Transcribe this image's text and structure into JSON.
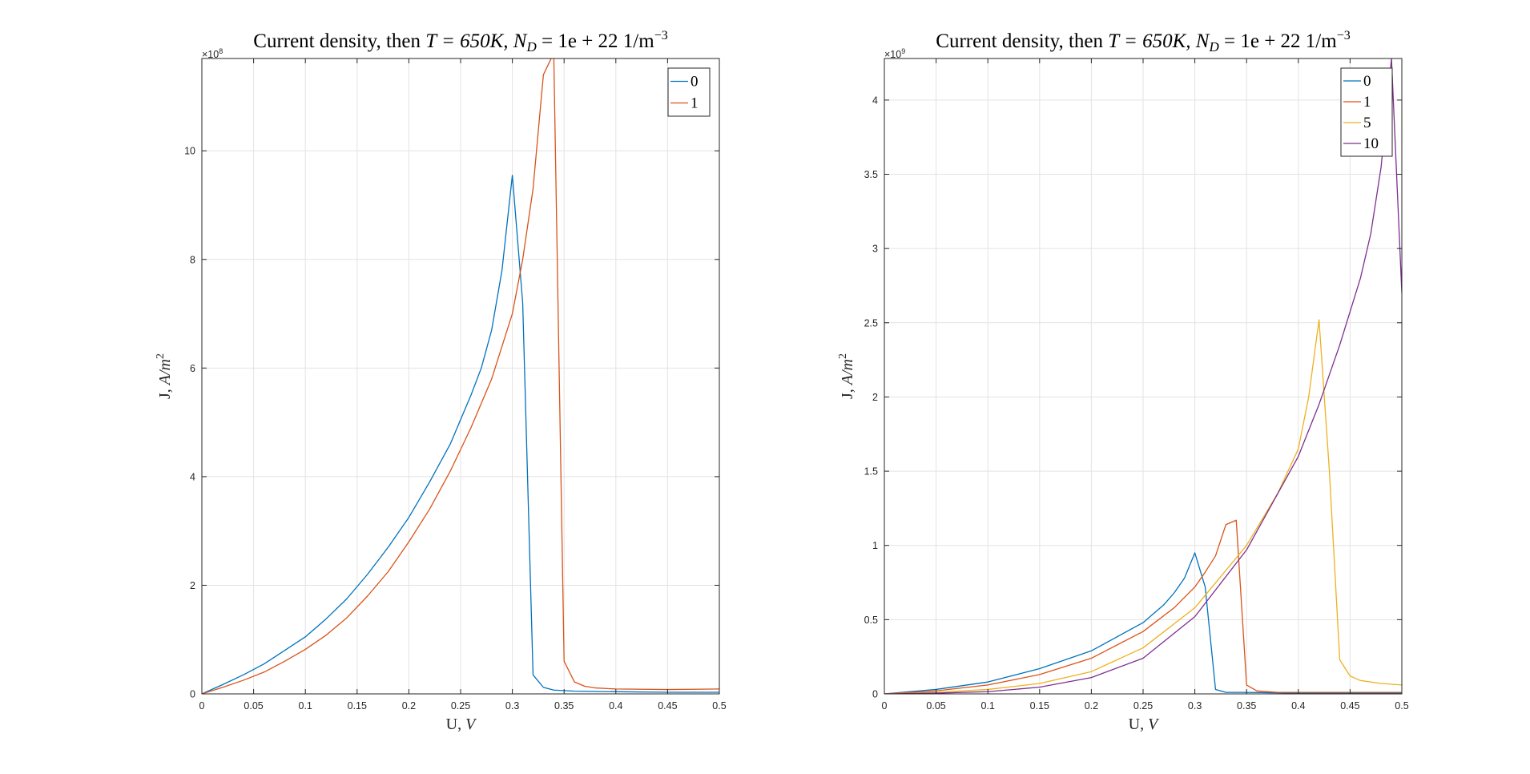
{
  "chart_data": [
    {
      "type": "line",
      "title": "Current density, then T = 650K, N_D = 1e + 22 1/m^-3",
      "title_parts": {
        "prefix": "Current density, then ",
        "t": "T = 650K, ",
        "n": "N",
        "n_sub": "D",
        "n_rest": " = 1e + 22 1/m",
        "n_sup": "−3"
      },
      "xlabel": "U, V",
      "xlabel_parts": {
        "a": "U, ",
        "b": "V"
      },
      "ylabel": "J, A/m^2",
      "ylabel_parts": {
        "a": "J, ",
        "b": "A/m",
        "sup": "2"
      },
      "exponent_label": "×10^8",
      "exponent_parts": {
        "base": "×10",
        "sup": "8"
      },
      "xlim": [
        0,
        0.5
      ],
      "ylim": [
        0,
        11.7
      ],
      "xticks": [
        0,
        0.05,
        0.1,
        0.15,
        0.2,
        0.25,
        0.3,
        0.35,
        0.4,
        0.45,
        0.5
      ],
      "xtick_labels": [
        "0",
        "0.05",
        "0.1",
        "0.15",
        "0.2",
        "0.25",
        "0.3",
        "0.35",
        "0.4",
        "0.45",
        "0.5"
      ],
      "yticks": [
        0,
        2,
        4,
        6,
        8,
        10
      ],
      "ytick_labels": [
        "0",
        "2",
        "4",
        "6",
        "8",
        "10"
      ],
      "grid": true,
      "legend_position": "top-right",
      "series": [
        {
          "name": "0",
          "color": "#0072BD",
          "x": [
            0,
            0.02,
            0.04,
            0.06,
            0.08,
            0.1,
            0.12,
            0.14,
            0.16,
            0.18,
            0.2,
            0.22,
            0.24,
            0.26,
            0.27,
            0.28,
            0.29,
            0.3,
            0.31,
            0.32,
            0.33,
            0.34,
            0.36,
            0.4,
            0.45,
            0.5
          ],
          "y": [
            0,
            0.17,
            0.35,
            0.55,
            0.8,
            1.05,
            1.38,
            1.75,
            2.2,
            2.7,
            3.25,
            3.9,
            4.6,
            5.5,
            6.0,
            6.7,
            7.8,
            9.55,
            7.2,
            0.35,
            0.12,
            0.07,
            0.05,
            0.04,
            0.03,
            0.03
          ]
        },
        {
          "name": "1",
          "color": "#D95319",
          "x": [
            0,
            0.02,
            0.04,
            0.06,
            0.08,
            0.1,
            0.12,
            0.14,
            0.16,
            0.18,
            0.2,
            0.22,
            0.24,
            0.26,
            0.28,
            0.3,
            0.31,
            0.32,
            0.33,
            0.34,
            0.35,
            0.36,
            0.37,
            0.38,
            0.4,
            0.45,
            0.5
          ],
          "y": [
            0,
            0.12,
            0.25,
            0.4,
            0.6,
            0.82,
            1.08,
            1.4,
            1.8,
            2.25,
            2.8,
            3.4,
            4.1,
            4.9,
            5.8,
            7.0,
            8.0,
            9.3,
            11.4,
            11.8,
            0.6,
            0.22,
            0.14,
            0.11,
            0.09,
            0.08,
            0.09
          ]
        }
      ]
    },
    {
      "type": "line",
      "title": "Current density, then T = 650K, N_D = 1e + 22 1/m^-3",
      "title_parts": {
        "prefix": "Current density, then ",
        "t": "T = 650K, ",
        "n": "N",
        "n_sub": "D",
        "n_rest": " = 1e + 22 1/m",
        "n_sup": "−3"
      },
      "xlabel": "U, V",
      "xlabel_parts": {
        "a": "U, ",
        "b": "V"
      },
      "ylabel": "J, A/m^2",
      "ylabel_parts": {
        "a": "J, ",
        "b": "A/m",
        "sup": "2"
      },
      "exponent_label": "×10^9",
      "exponent_parts": {
        "base": "×10",
        "sup": "9"
      },
      "xlim": [
        0,
        0.5
      ],
      "ylim": [
        0,
        4.28
      ],
      "xticks": [
        0,
        0.05,
        0.1,
        0.15,
        0.2,
        0.25,
        0.3,
        0.35,
        0.4,
        0.45,
        0.5
      ],
      "xtick_labels": [
        "0",
        "0.05",
        "0.1",
        "0.15",
        "0.2",
        "0.25",
        "0.3",
        "0.35",
        "0.4",
        "0.45",
        "0.5"
      ],
      "yticks": [
        0,
        0.5,
        1,
        1.5,
        2,
        2.5,
        3,
        3.5,
        4
      ],
      "ytick_labels": [
        "0",
        "0.5",
        "1",
        "1.5",
        "2",
        "2.5",
        "3",
        "3.5",
        "4"
      ],
      "grid": true,
      "legend_position": "top-right",
      "series": [
        {
          "name": "0",
          "color": "#0072BD",
          "x": [
            0,
            0.05,
            0.1,
            0.15,
            0.2,
            0.25,
            0.27,
            0.28,
            0.29,
            0.3,
            0.31,
            0.32,
            0.33,
            0.35,
            0.4,
            0.5
          ],
          "y": [
            0,
            0.03,
            0.08,
            0.17,
            0.29,
            0.48,
            0.6,
            0.68,
            0.78,
            0.95,
            0.72,
            0.03,
            0.01,
            0.01,
            0.005,
            0.005
          ]
        },
        {
          "name": "1",
          "color": "#D95319",
          "x": [
            0,
            0.05,
            0.1,
            0.15,
            0.2,
            0.25,
            0.28,
            0.3,
            0.31,
            0.32,
            0.33,
            0.34,
            0.35,
            0.36,
            0.38,
            0.4,
            0.5
          ],
          "y": [
            0,
            0.02,
            0.06,
            0.13,
            0.24,
            0.42,
            0.58,
            0.72,
            0.82,
            0.93,
            1.14,
            1.17,
            0.06,
            0.02,
            0.01,
            0.01,
            0.01
          ]
        },
        {
          "name": "5",
          "color": "#EDB120",
          "x": [
            0,
            0.05,
            0.1,
            0.15,
            0.2,
            0.25,
            0.3,
            0.35,
            0.38,
            0.4,
            0.41,
            0.42,
            0.43,
            0.44,
            0.45,
            0.46,
            0.48,
            0.5
          ],
          "y": [
            0,
            0.01,
            0.03,
            0.07,
            0.15,
            0.31,
            0.58,
            1.0,
            1.35,
            1.65,
            2.0,
            2.52,
            1.5,
            0.23,
            0.12,
            0.09,
            0.07,
            0.06
          ]
        },
        {
          "name": "10",
          "color": "#7E2F8E",
          "x": [
            0,
            0.05,
            0.1,
            0.15,
            0.2,
            0.25,
            0.3,
            0.35,
            0.4,
            0.42,
            0.44,
            0.46,
            0.47,
            0.48,
            0.49,
            0.5
          ],
          "y": [
            0,
            0.005,
            0.015,
            0.045,
            0.11,
            0.24,
            0.52,
            0.97,
            1.6,
            1.95,
            2.35,
            2.8,
            3.1,
            3.55,
            4.28,
            2.7
          ]
        }
      ]
    }
  ]
}
